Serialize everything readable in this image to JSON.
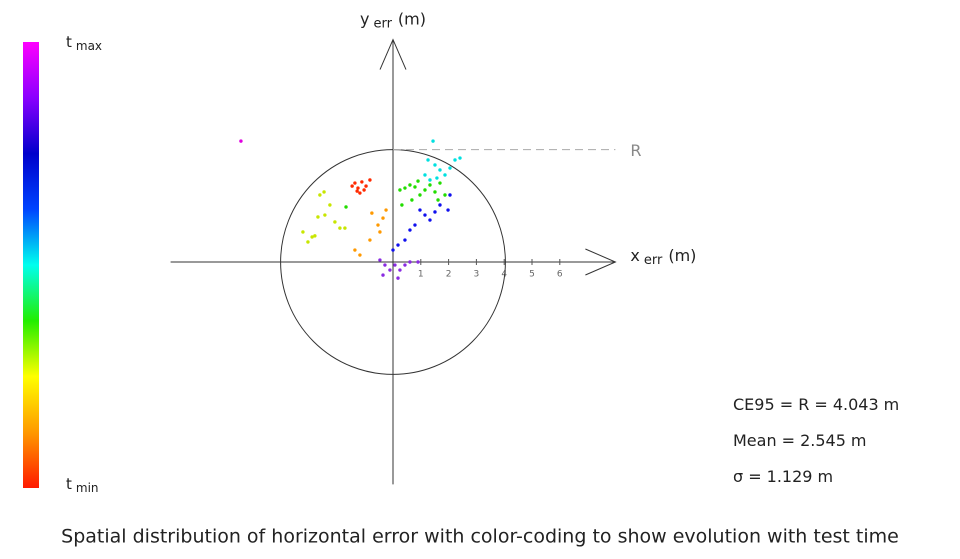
{
  "chart_data": {
    "type": "scatter",
    "x_label": {
      "main": "x",
      "sub": "err",
      "unit": "(m)"
    },
    "y_label": {
      "main": "y",
      "sub": "err",
      "unit": "(m)"
    },
    "xlim": [
      -8,
      8
    ],
    "ylim": [
      -8,
      8
    ],
    "xticks": [
      1,
      2,
      3,
      4,
      5,
      6
    ],
    "radius_label": "R",
    "colorbar": {
      "colors": [
        "#ff1a00",
        "#ff9900",
        "#ffff00",
        "#22ee00",
        "#00ffee",
        "#0044ff",
        "#0000cc",
        "#8a00ff",
        "#ff00ff"
      ],
      "max_label": {
        "main": "t",
        "sub": "max"
      },
      "min_label": {
        "main": "t",
        "sub": "min"
      }
    },
    "series": [
      {
        "color": "#ff2a00",
        "x": [
          -1.47,
          -1.37,
          -1.26,
          -1.12,
          -1.04,
          -1.19,
          -0.83,
          -0.97,
          -1.29
        ],
        "values": [
          2.73,
          2.84,
          2.66,
          2.88,
          2.59,
          2.48,
          2.95,
          2.73,
          2.55
        ]
      },
      {
        "color": "#ff9900",
        "x": [
          -0.76,
          -0.54,
          -0.36,
          -0.83,
          -1.37,
          -1.19,
          -0.47,
          -0.25
        ],
        "values": [
          1.76,
          1.33,
          1.58,
          0.79,
          0.43,
          0.25,
          1.08,
          1.87
        ]
      },
      {
        "color": "#c8e600",
        "x": [
          -3.24,
          -3.06,
          -2.91,
          -2.7,
          -2.45,
          -2.09,
          -1.91,
          -1.73,
          -2.63,
          -2.48,
          -2.27,
          -2.81
        ],
        "values": [
          1.08,
          0.72,
          0.9,
          1.62,
          1.69,
          1.44,
          1.22,
          1.22,
          2.41,
          2.52,
          2.05,
          0.94
        ]
      },
      {
        "color": "#22dd00",
        "x": [
          0.25,
          0.43,
          0.61,
          0.79,
          0.97,
          1.15,
          1.33,
          1.51,
          1.69,
          1.87,
          0.68,
          0.9,
          0.32,
          1.62,
          -1.69
        ],
        "values": [
          2.59,
          2.66,
          2.77,
          2.7,
          2.41,
          2.59,
          2.77,
          2.52,
          2.84,
          2.41,
          2.23,
          2.91,
          2.05,
          2.23,
          1.98
        ]
      },
      {
        "color": "#00e0e0",
        "x": [
          1.44,
          1.26,
          1.51,
          1.69,
          1.87,
          2.05,
          2.23,
          2.41,
          1.15,
          1.58,
          1.33
        ],
        "values": [
          4.35,
          3.67,
          3.49,
          3.31,
          3.13,
          3.38,
          3.67,
          3.74,
          3.13,
          3.02,
          2.95
        ]
      },
      {
        "color": "#1010ee",
        "x": [
          0.97,
          1.15,
          1.33,
          1.51,
          1.69,
          1.98,
          0.61,
          0.43,
          0.18,
          0,
          0.79,
          2.05
        ],
        "values": [
          1.87,
          1.69,
          1.51,
          1.8,
          2.05,
          1.87,
          1.15,
          0.79,
          0.61,
          0.43,
          1.33,
          2.41
        ]
      },
      {
        "color": "#8a2be2",
        "x": [
          -0.29,
          -0.36,
          -0.11,
          0.18,
          0.25,
          0.43,
          0.61,
          0.9,
          -0.47,
          0.07
        ],
        "values": [
          -0.11,
          -0.47,
          -0.29,
          -0.58,
          -0.29,
          -0.11,
          0,
          0,
          0.07,
          -0.11
        ]
      },
      {
        "color": "#e000e0",
        "x": [
          -5.47
        ],
        "values": [
          4.35
        ]
      }
    ],
    "stats": [
      {
        "label": "CE95 = R =",
        "value": 4.043,
        "unit": "m"
      },
      {
        "label": "Mean =",
        "value": 2.545,
        "unit": "m"
      },
      {
        "label": "σ =",
        "value": 1.129,
        "unit": "m"
      }
    ],
    "caption": "Spatial distribution of horizontal error with color-coding to show evolution with test time"
  }
}
